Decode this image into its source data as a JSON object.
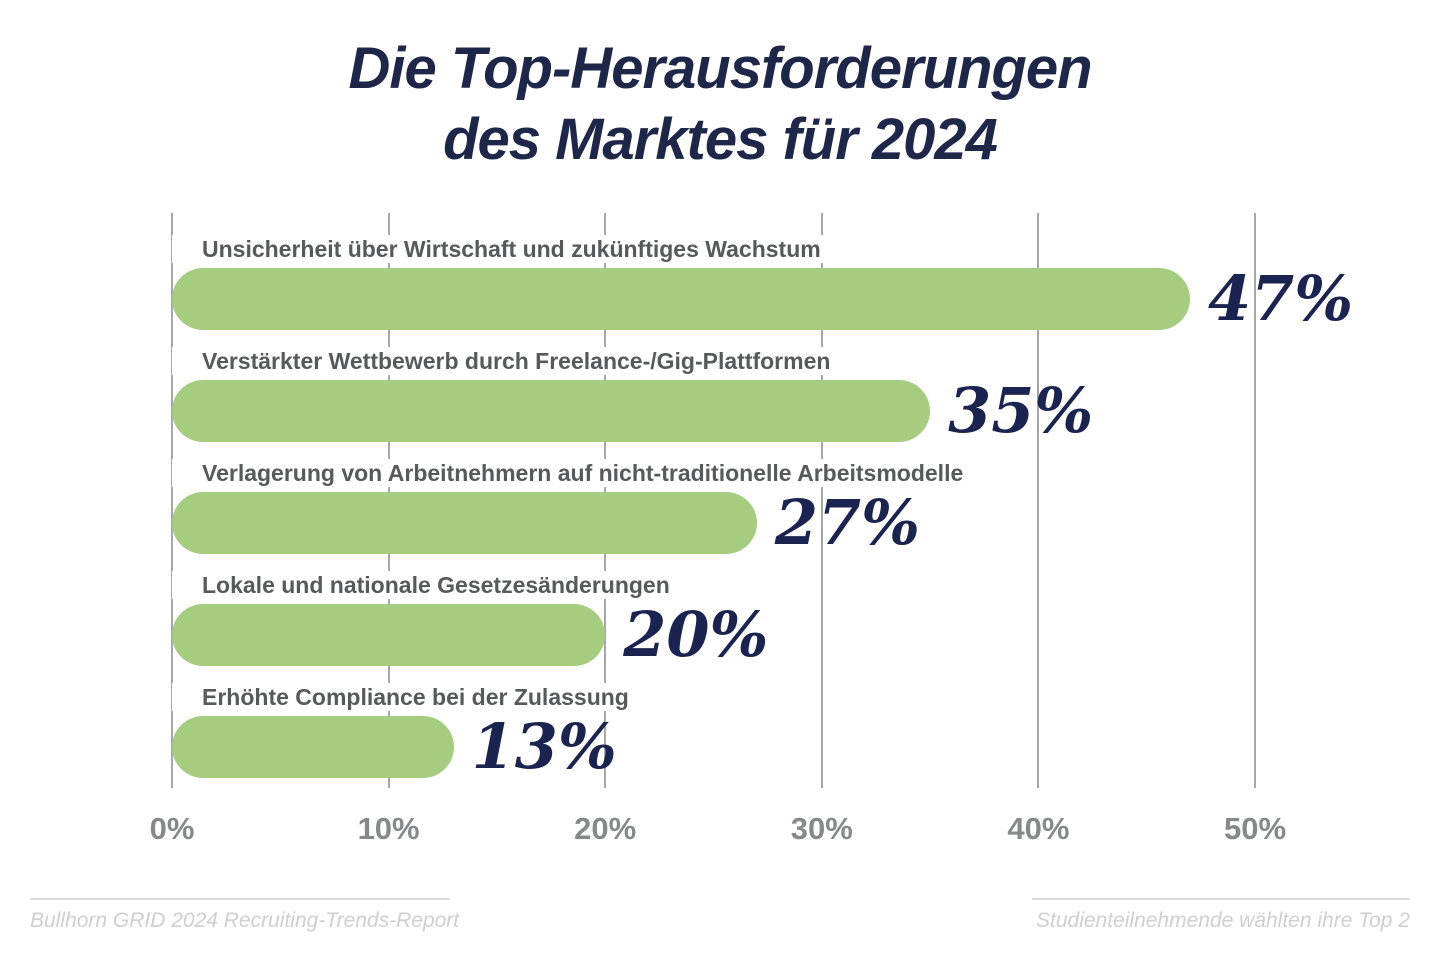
{
  "title": {
    "line1": "Die Top-Herausforderungen",
    "line2": "des Marktes für 2024"
  },
  "chart_data": {
    "type": "bar",
    "orientation": "horizontal",
    "title": "Die Top-Herausforderungen des Marktes für 2024",
    "categories": [
      "Unsicherheit über Wirtschaft und zukünftiges Wachstum",
      "Verstärkter Wettbewerb durch Freelance-/Gig-Plattformen",
      "Verlagerung von Arbeitnehmern auf nicht-traditionelle Arbeitsmodelle",
      "Lokale und nationale Gesetzesänderungen",
      "Erhöhte Compliance bei der Zulassung"
    ],
    "values": [
      47,
      35,
      27,
      20,
      13
    ],
    "value_labels": [
      "47%",
      "35%",
      "27%",
      "20%",
      "13%"
    ],
    "x_ticks": [
      "0%",
      "10%",
      "20%",
      "30%",
      "40%",
      "50%"
    ],
    "xlim": [
      0,
      50
    ],
    "xlabel": "",
    "ylabel": "",
    "grid": true,
    "legend": false
  },
  "footer": {
    "left": "Bullhorn GRID 2024 Recruiting-Trends-Report",
    "right": "Studienteilnehmende wählten ihre Top 2"
  },
  "colors": {
    "navy": "#1e2749",
    "value_navy": "#1b2450",
    "green": "#a5cc7f",
    "label_gray": "#58595b",
    "axis_gray": "#87888a",
    "grid_gray": "#a5a7aa",
    "footer_gray": "#cfcfcf"
  }
}
